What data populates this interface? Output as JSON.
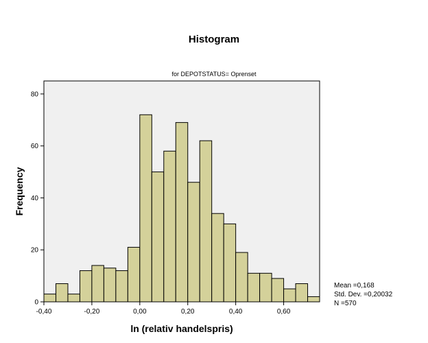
{
  "chart_data": {
    "type": "bar",
    "title": "Histogram",
    "subtitle": "for DEPOTSTATUS= Oprenset",
    "xlabel": "ln (relativ handelspris)",
    "ylabel": "Frequency",
    "xlim": [
      -0.4,
      0.75
    ],
    "ylim": [
      0,
      85
    ],
    "bin_width": 0.05,
    "bin_starts": [
      -0.4,
      -0.35,
      -0.3,
      -0.25,
      -0.2,
      -0.15,
      -0.1,
      -0.05,
      0.0,
      0.05,
      0.1,
      0.15,
      0.2,
      0.25,
      0.3,
      0.35,
      0.4,
      0.45,
      0.5,
      0.55,
      0.6,
      0.65,
      0.7
    ],
    "values": [
      3,
      7,
      3,
      12,
      14,
      13,
      12,
      21,
      72,
      50,
      58,
      69,
      46,
      62,
      34,
      30,
      19,
      11,
      11,
      9,
      5,
      7,
      2
    ],
    "x_ticks": [
      -0.4,
      -0.2,
      0.0,
      0.2,
      0.4,
      0.6
    ],
    "x_tick_labels": [
      "-0,40",
      "-0,20",
      "0,00",
      "0,20",
      "0,40",
      "0,60"
    ],
    "y_ticks": [
      0,
      20,
      40,
      60,
      80
    ],
    "y_tick_labels": [
      "0",
      "20",
      "40",
      "60",
      "80"
    ],
    "grid": false,
    "legend": "none",
    "colors": {
      "bar_fill": "#d4d19a",
      "bar_stroke": "#000000",
      "plot_bg": "#f0f0f0"
    },
    "stats": {
      "mean": "Mean =0,168",
      "std_dev": "Std. Dev. =0,20032",
      "n": "N =570"
    }
  }
}
